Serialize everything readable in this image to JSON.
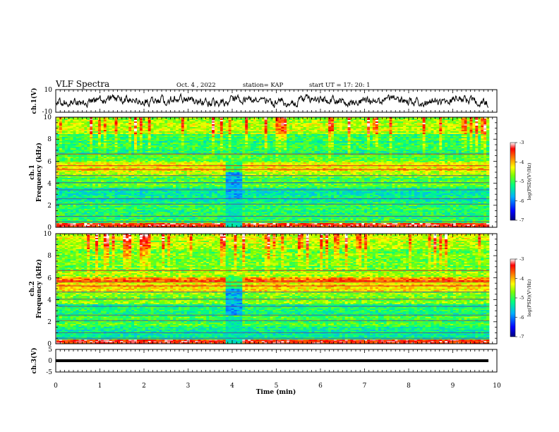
{
  "header": {
    "title": "VLF Spectra",
    "date": "Oct. 4 , 2022",
    "station": "station= KAP",
    "start_ut": "start UT = 17: 20: 1"
  },
  "chart_data": [
    {
      "type": "line",
      "panel": "ch1-waveform",
      "ylabel": "ch.1(V)",
      "ylim": [
        -10,
        10
      ],
      "y_ticks": [
        "10",
        "-10"
      ],
      "xlim": [
        0,
        10
      ]
    },
    {
      "type": "heatmap",
      "panel": "ch1-spectrogram",
      "ylabel": "ch.1 Frequency (kHz)",
      "ylabel_line1": "ch.1",
      "ylabel_line2": "Frequency (kHz)",
      "ylim": [
        0,
        10
      ],
      "y_ticks": [
        "0",
        "2",
        "4",
        "6",
        "8",
        "10"
      ],
      "xlim": [
        0,
        9.85
      ],
      "colorbar": {
        "label": "log(PSD)(V²/Hz)",
        "range": [
          -7,
          -3
        ],
        "ticks": [
          "-3",
          "-4",
          "-5",
          "-6",
          "-7"
        ],
        "colormap": [
          "#000080",
          "#0000ff",
          "#00b0ff",
          "#00ff80",
          "#80ff00",
          "#ffff00",
          "#ff8000",
          "#ff0000",
          "#ffffff"
        ]
      }
    },
    {
      "type": "heatmap",
      "panel": "ch2-spectrogram",
      "ylabel": "ch.2 Frequency (kHz)",
      "ylabel_line1": "ch.2",
      "ylabel_line2": "Frequency (kHz)",
      "ylim": [
        0,
        10
      ],
      "y_ticks": [
        "0",
        "2",
        "4",
        "6",
        "8",
        "10"
      ],
      "xlim": [
        0,
        9.85
      ],
      "colorbar": {
        "label": "log(PSD)(V²/Hz)",
        "range": [
          -7,
          -3
        ],
        "ticks": [
          "-3",
          "-4",
          "-5",
          "-6",
          "-7"
        ]
      }
    },
    {
      "type": "line",
      "panel": "ch3-waveform",
      "ylabel": "ch.3(V)",
      "ylim": [
        -5,
        5
      ],
      "y_ticks": [
        "5",
        "0",
        "-5"
      ],
      "xlim": [
        0,
        10
      ],
      "xlabel": "Time (min)",
      "x_ticks": [
        "0",
        "1",
        "2",
        "3",
        "4",
        "5",
        "6",
        "7",
        "8",
        "9",
        "10"
      ]
    }
  ]
}
